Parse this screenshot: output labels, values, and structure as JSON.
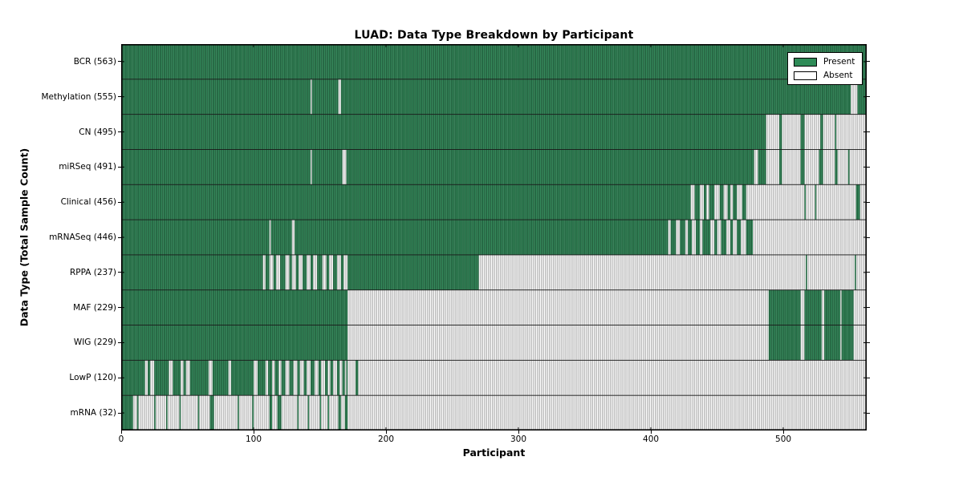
{
  "chart_data": {
    "type": "heatmap",
    "title": "LUAD: Data Type Breakdown by Participant",
    "xlabel": "Participant",
    "ylabel": "Data Type (Total Sample Count)",
    "x_range": [
      0,
      563
    ],
    "x_ticks": [
      0,
      100,
      200,
      300,
      400,
      500
    ],
    "grid": false,
    "legend_position": "upper right",
    "legend": [
      {
        "label": "Present",
        "color": "#2e8b57"
      },
      {
        "label": "Absent",
        "color": "#ffffff"
      }
    ],
    "colors": {
      "present_fill": "#358a5c",
      "present_edge": "#16452a",
      "absent_fill": "#ffffff",
      "absent_edge": "#8c8c8c",
      "row_separator": "#1a1a1a",
      "frame": "#000000"
    },
    "rows": [
      {
        "name": "BCR",
        "label": "BCR (563)",
        "total": 563,
        "present_ranges": [
          [
            0,
            563
          ]
        ]
      },
      {
        "name": "Methylation",
        "label": "Methylation (555)",
        "total": 555,
        "present_ranges": [
          [
            0,
            143
          ],
          [
            144,
            164
          ],
          [
            166,
            551
          ],
          [
            556,
            563
          ]
        ]
      },
      {
        "name": "CN",
        "label": "CN (495)",
        "total": 495,
        "present_ranges": [
          [
            0,
            487
          ],
          [
            497,
            499
          ],
          [
            513,
            516
          ],
          [
            528,
            530
          ],
          [
            539,
            540
          ]
        ]
      },
      {
        "name": "miRSeq",
        "label": "miRSeq (491)",
        "total": 491,
        "present_ranges": [
          [
            0,
            143
          ],
          [
            144,
            167
          ],
          [
            170,
            478
          ],
          [
            481,
            487
          ],
          [
            497,
            499
          ],
          [
            513,
            516
          ],
          [
            527,
            530
          ],
          [
            539,
            541
          ],
          [
            549,
            550
          ]
        ]
      },
      {
        "name": "Clinical",
        "label": "Clinical (456)",
        "total": 456,
        "present_ranges": [
          [
            0,
            430
          ],
          [
            433,
            437
          ],
          [
            440,
            442
          ],
          [
            444,
            448
          ],
          [
            452,
            455
          ],
          [
            458,
            460
          ],
          [
            462,
            465
          ],
          [
            469,
            472
          ],
          [
            516,
            517
          ],
          [
            524,
            525
          ],
          [
            555,
            558
          ]
        ]
      },
      {
        "name": "mRNASeq",
        "label": "mRNASeq (446)",
        "total": 446,
        "present_ranges": [
          [
            0,
            112
          ],
          [
            113,
            129
          ],
          [
            131,
            413
          ],
          [
            415,
            419
          ],
          [
            422,
            426
          ],
          [
            428,
            431
          ],
          [
            434,
            437
          ],
          [
            439,
            445
          ],
          [
            448,
            450
          ],
          [
            453,
            457
          ],
          [
            460,
            462
          ],
          [
            465,
            468
          ],
          [
            472,
            477
          ]
        ]
      },
      {
        "name": "RPPA",
        "label": "RPPA (237)",
        "total": 237,
        "present_ranges": [
          [
            0,
            107
          ],
          [
            109,
            112
          ],
          [
            115,
            117
          ],
          [
            120,
            124
          ],
          [
            127,
            129
          ],
          [
            132,
            134
          ],
          [
            137,
            140
          ],
          [
            143,
            145
          ],
          [
            148,
            152
          ],
          [
            155,
            157
          ],
          [
            160,
            163
          ],
          [
            166,
            168
          ],
          [
            171,
            270
          ],
          [
            517,
            518
          ],
          [
            554,
            555
          ]
        ]
      },
      {
        "name": "MAF",
        "label": "MAF (229)",
        "total": 229,
        "present_ranges": [
          [
            0,
            171
          ],
          [
            489,
            513
          ],
          [
            516,
            529
          ],
          [
            531,
            543
          ],
          [
            544,
            553
          ]
        ]
      },
      {
        "name": "WIG",
        "label": "WIG (229)",
        "total": 229,
        "present_ranges": [
          [
            0,
            171
          ],
          [
            489,
            513
          ],
          [
            516,
            529
          ],
          [
            531,
            543
          ],
          [
            544,
            553
          ]
        ]
      },
      {
        "name": "LowP",
        "label": "LowP (120)",
        "total": 120,
        "present_ranges": [
          [
            0,
            18
          ],
          [
            20,
            22
          ],
          [
            25,
            36
          ],
          [
            39,
            45
          ],
          [
            47,
            49
          ],
          [
            52,
            66
          ],
          [
            69,
            81
          ],
          [
            83,
            100
          ],
          [
            103,
            109
          ],
          [
            111,
            114
          ],
          [
            116,
            119
          ],
          [
            121,
            124
          ],
          [
            127,
            130
          ],
          [
            133,
            135
          ],
          [
            138,
            140
          ],
          [
            143,
            146
          ],
          [
            149,
            151
          ],
          [
            154,
            156
          ],
          [
            158,
            160
          ],
          [
            163,
            165
          ],
          [
            167,
            169
          ],
          [
            170,
            171
          ],
          [
            177,
            179
          ]
        ]
      },
      {
        "name": "mRNA",
        "label": "mRNA (32)",
        "total": 32,
        "present_ranges": [
          [
            0,
            9
          ],
          [
            12,
            13
          ],
          [
            25,
            26
          ],
          [
            34,
            35
          ],
          [
            44,
            45
          ],
          [
            58,
            59
          ],
          [
            67,
            70
          ],
          [
            88,
            89
          ],
          [
            99,
            100
          ],
          [
            112,
            114
          ],
          [
            118,
            121
          ],
          [
            133,
            134
          ],
          [
            141,
            142
          ],
          [
            150,
            151
          ],
          [
            156,
            157
          ],
          [
            164,
            166
          ],
          [
            169,
            171
          ]
        ]
      }
    ]
  }
}
